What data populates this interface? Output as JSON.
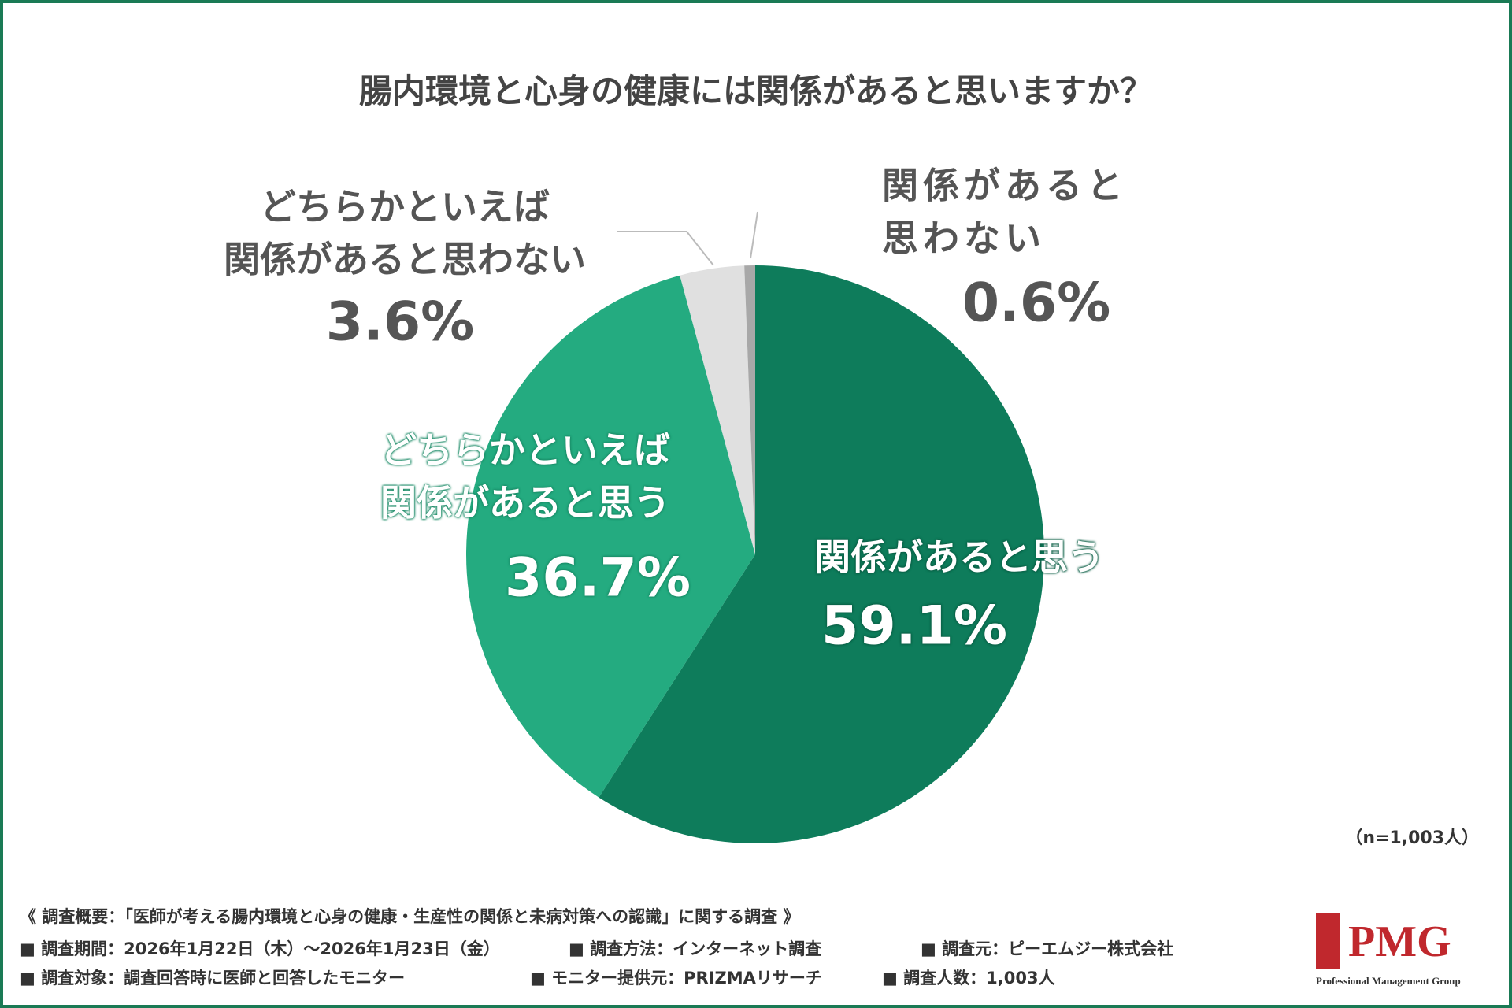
{
  "chart_data": {
    "type": "pie",
    "title": "腸内環境と心身の健康には関係があると思いますか？",
    "categories": [
      "関係があると思う",
      "どちらかといえば\n関係があると思う",
      "どちらかといえば\n関係があると思わない",
      "関係があると\n思わない"
    ],
    "values": [
      59.1,
      36.7,
      3.6,
      0.6
    ],
    "value_labels": [
      "59.1%",
      "36.7%",
      "3.6%",
      "0.6%"
    ],
    "colors": [
      "#0e7c5b",
      "#24ab80",
      "#e0e0e0",
      "#a8a8a8"
    ],
    "note": "（n=1,003人）"
  },
  "footer": {
    "summary": "《 調査概要：「医師が考える腸内環境と心身の健康・生産性の関係と未病対策への認識」に関する調査 》",
    "rows": [
      [
        "■ 調査期間：2026年1月22日（木）～2026年1月23日（金）",
        "■ 調査方法：インターネット調査",
        "■ 調査元：ピーエムジー株式会社"
      ],
      [
        "■ 調査対象：調査回答時に医師と回答したモニター",
        "■ モニター提供元：PRIZMAリサーチ",
        "■ 調査人数：1,003人"
      ]
    ]
  },
  "logo": {
    "name": "PMG",
    "tagline": "Professional Management Group"
  }
}
